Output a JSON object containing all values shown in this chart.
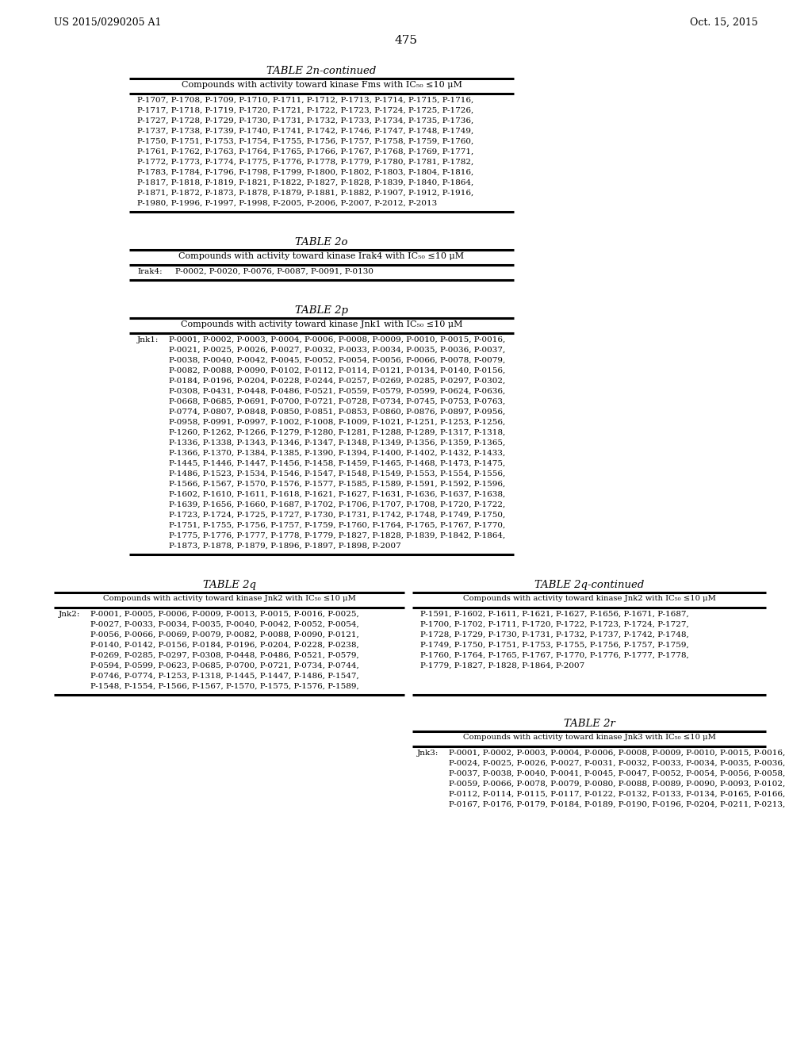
{
  "header_left": "US 2015/0290205 A1",
  "header_right": "Oct. 15, 2015",
  "page_number": "475",
  "bg_color": "#ffffff",
  "table_2n_title": "TABLE 2n-continued",
  "table_2n_header": "Compounds with activity toward kinase Fms with IC₅₀ ≤10 μM",
  "table_2n_content": "P-1707, P-1708, P-1709, P-1710, P-1711, P-1712, P-1713, P-1714, P-1715, P-1716,\nP-1717, P-1718, P-1719, P-1720, P-1721, P-1722, P-1723, P-1724, P-1725, P-1726,\nP-1727, P-1728, P-1729, P-1730, P-1731, P-1732, P-1733, P-1734, P-1735, P-1736,\nP-1737, P-1738, P-1739, P-1740, P-1741, P-1742, P-1746, P-1747, P-1748, P-1749,\nP-1750, P-1751, P-1753, P-1754, P-1755, P-1756, P-1757, P-1758, P-1759, P-1760,\nP-1761, P-1762, P-1763, P-1764, P-1765, P-1766, P-1767, P-1768, P-1769, P-1771,\nP-1772, P-1773, P-1774, P-1775, P-1776, P-1778, P-1779, P-1780, P-1781, P-1782,\nP-1783, P-1784, P-1796, P-1798, P-1799, P-1800, P-1802, P-1803, P-1804, P-1816,\nP-1817, P-1818, P-1819, P-1821, P-1822, P-1827, P-1828, P-1839, P-1840, P-1864,\nP-1871, P-1872, P-1873, P-1878, P-1879, P-1881, P-1882, P-1907, P-1912, P-1916,\nP-1980, P-1996, P-1997, P-1998, P-2005, P-2006, P-2007, P-2012, P-2013",
  "table_2o_title": "TABLE 2o",
  "table_2o_header": "Compounds with activity toward kinase Irak4 with IC₅₀ ≤10 μM",
  "table_2o_label": "Irak4:",
  "table_2o_content": "P-0002, P-0020, P-0076, P-0087, P-0091, P-0130",
  "table_2p_title": "TABLE 2p",
  "table_2p_header": "Compounds with activity toward kinase Jnk1 with IC₅₀ ≤10 μM",
  "table_2p_label": "Jnk1:",
  "table_2p_content": "P-0001, P-0002, P-0003, P-0004, P-0006, P-0008, P-0009, P-0010, P-0015, P-0016,\nP-0021, P-0025, P-0026, P-0027, P-0032, P-0033, P-0034, P-0035, P-0036, P-0037,\nP-0038, P-0040, P-0042, P-0045, P-0052, P-0054, P-0056, P-0066, P-0078, P-0079,\nP-0082, P-0088, P-0090, P-0102, P-0112, P-0114, P-0121, P-0134, P-0140, P-0156,\nP-0184, P-0196, P-0204, P-0228, P-0244, P-0257, P-0269, P-0285, P-0297, P-0302,\nP-0308, P-0431, P-0448, P-0486, P-0521, P-0559, P-0579, P-0599, P-0624, P-0636,\nP-0668, P-0685, P-0691, P-0700, P-0721, P-0728, P-0734, P-0745, P-0753, P-0763,\nP-0774, P-0807, P-0848, P-0850, P-0851, P-0853, P-0860, P-0876, P-0897, P-0956,\nP-0958, P-0991, P-0997, P-1002, P-1008, P-1009, P-1021, P-1251, P-1253, P-1256,\nP-1260, P-1262, P-1266, P-1279, P-1280, P-1281, P-1288, P-1289, P-1317, P-1318,\nP-1336, P-1338, P-1343, P-1346, P-1347, P-1348, P-1349, P-1356, P-1359, P-1365,\nP-1366, P-1370, P-1384, P-1385, P-1390, P-1394, P-1400, P-1402, P-1432, P-1433,\nP-1445, P-1446, P-1447, P-1456, P-1458, P-1459, P-1465, P-1468, P-1473, P-1475,\nP-1486, P-1523, P-1534, P-1546, P-1547, P-1548, P-1549, P-1553, P-1554, P-1556,\nP-1566, P-1567, P-1570, P-1576, P-1577, P-1585, P-1589, P-1591, P-1592, P-1596,\nP-1602, P-1610, P-1611, P-1618, P-1621, P-1627, P-1631, P-1636, P-1637, P-1638,\nP-1639, P-1656, P-1660, P-1687, P-1702, P-1706, P-1707, P-1708, P-1720, P-1722,\nP-1723, P-1724, P-1725, P-1727, P-1730, P-1731, P-1742, P-1748, P-1749, P-1750,\nP-1751, P-1755, P-1756, P-1757, P-1759, P-1760, P-1764, P-1765, P-1767, P-1770,\nP-1775, P-1776, P-1777, P-1778, P-1779, P-1827, P-1828, P-1839, P-1842, P-1864,\nP-1873, P-1878, P-1879, P-1896, P-1897, P-1898, P-2007",
  "table_2q_title": "TABLE 2q",
  "table_2q_header": "Compounds with activity toward kinase Jnk2 with IC₅₀ ≤10 μM",
  "table_2q_label": "Jnk2:",
  "table_2q_content": "P-0001, P-0005, P-0006, P-0009, P-0013, P-0015, P-0016, P-0025,\nP-0027, P-0033, P-0034, P-0035, P-0040, P-0042, P-0052, P-0054,\nP-0056, P-0066, P-0069, P-0079, P-0082, P-0088, P-0090, P-0121,\nP-0140, P-0142, P-0156, P-0184, P-0196, P-0204, P-0228, P-0238,\nP-0269, P-0285, P-0297, P-0308, P-0448, P-0486, P-0521, P-0579,\nP-0594, P-0599, P-0623, P-0685, P-0700, P-0721, P-0734, P-0744,\nP-0746, P-0774, P-1253, P-1318, P-1445, P-1447, P-1486, P-1547,\nP-1548, P-1554, P-1566, P-1567, P-1570, P-1575, P-1576, P-1589,",
  "table_2q_cont_title": "TABLE 2q-continued",
  "table_2q_cont_header": "Compounds with activity toward kinase Jnk2 with IC₅₀ ≤10 μM",
  "table_2q_cont_content": "P-1591, P-1602, P-1611, P-1621, P-1627, P-1656, P-1671, P-1687,\nP-1700, P-1702, P-1711, P-1720, P-1722, P-1723, P-1724, P-1727,\nP-1728, P-1729, P-1730, P-1731, P-1732, P-1737, P-1742, P-1748,\nP-1749, P-1750, P-1751, P-1753, P-1755, P-1756, P-1757, P-1759,\nP-1760, P-1764, P-1765, P-1767, P-1770, P-1776, P-1777, P-1778,\nP-1779, P-1827, P-1828, P-1864, P-2007",
  "table_2r_title": "TABLE 2r",
  "table_2r_header": "Compounds with activity toward kinase Jnk3 with IC₅₀ ≤10 μM",
  "table_2r_label": "Jnk3:",
  "table_2r_content": "P-0001, P-0002, P-0003, P-0004, P-0006, P-0008, P-0009, P-0010, P-0015, P-0016,\nP-0024, P-0025, P-0026, P-0027, P-0031, P-0032, P-0033, P-0034, P-0035, P-0036,\nP-0037, P-0038, P-0040, P-0041, P-0045, P-0047, P-0052, P-0054, P-0056, P-0058,\nP-0059, P-0066, P-0078, P-0079, P-0080, P-0088, P-0089, P-0090, P-0093, P-0102,\nP-0112, P-0114, P-0115, P-0117, P-0122, P-0132, P-0133, P-0134, P-0165, P-0166,\nP-0167, P-0176, P-0179, P-0184, P-0189, P-0190, P-0196, P-0204, P-0211, P-0213,"
}
